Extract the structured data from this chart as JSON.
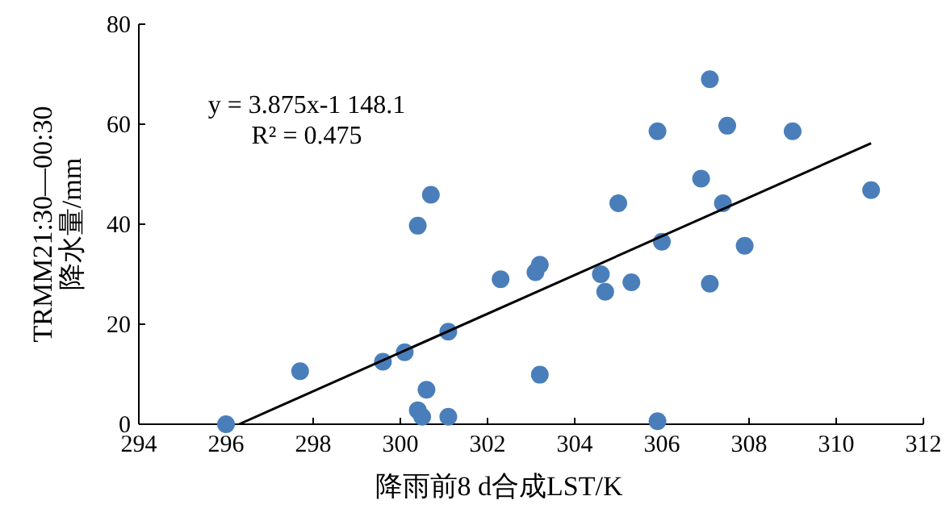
{
  "chart_data": {
    "type": "scatter",
    "xlabel": "降雨前8 d合成LST/K",
    "ylabel": "TRMM21:30—00:30\n降水量/mm",
    "xlim": [
      294,
      312
    ],
    "xticks": [
      294,
      296,
      298,
      300,
      302,
      304,
      306,
      308,
      310,
      312
    ],
    "ylim": [
      0,
      80
    ],
    "yticks": [
      0,
      20,
      40,
      60,
      80
    ],
    "grid": false,
    "series": [
      {
        "type": "scatter",
        "marker": "circle",
        "color": "#4a7ebb",
        "x": [
          296.0,
          297.7,
          299.6,
          300.1,
          300.4,
          300.7,
          301.1,
          300.6,
          300.4,
          300.5,
          301.1,
          302.3,
          303.1,
          303.2,
          303.2,
          304.6,
          304.7,
          305.0,
          305.3,
          305.9,
          306.0,
          305.9,
          306.9,
          307.1,
          307.1,
          307.4,
          307.5,
          307.9,
          309.0,
          310.8
        ],
        "values": [
          0,
          10.6,
          12.5,
          14.4,
          39.7,
          45.9,
          18.5,
          6.9,
          2.8,
          1.5,
          1.5,
          29.0,
          30.4,
          31.9,
          9.9,
          30.0,
          26.5,
          44.2,
          28.4,
          58.6,
          36.5,
          0.6,
          49.1,
          69.0,
          28.1,
          44.2,
          59.7,
          35.7,
          58.6,
          46.8
        ]
      },
      {
        "type": "line",
        "color": "#000000",
        "x": [
          296.3,
          310.8
        ],
        "values": [
          0,
          56.2
        ]
      }
    ],
    "annotations": [
      "y = 3.875x-1 148.1",
      "R² = 0.475"
    ]
  }
}
